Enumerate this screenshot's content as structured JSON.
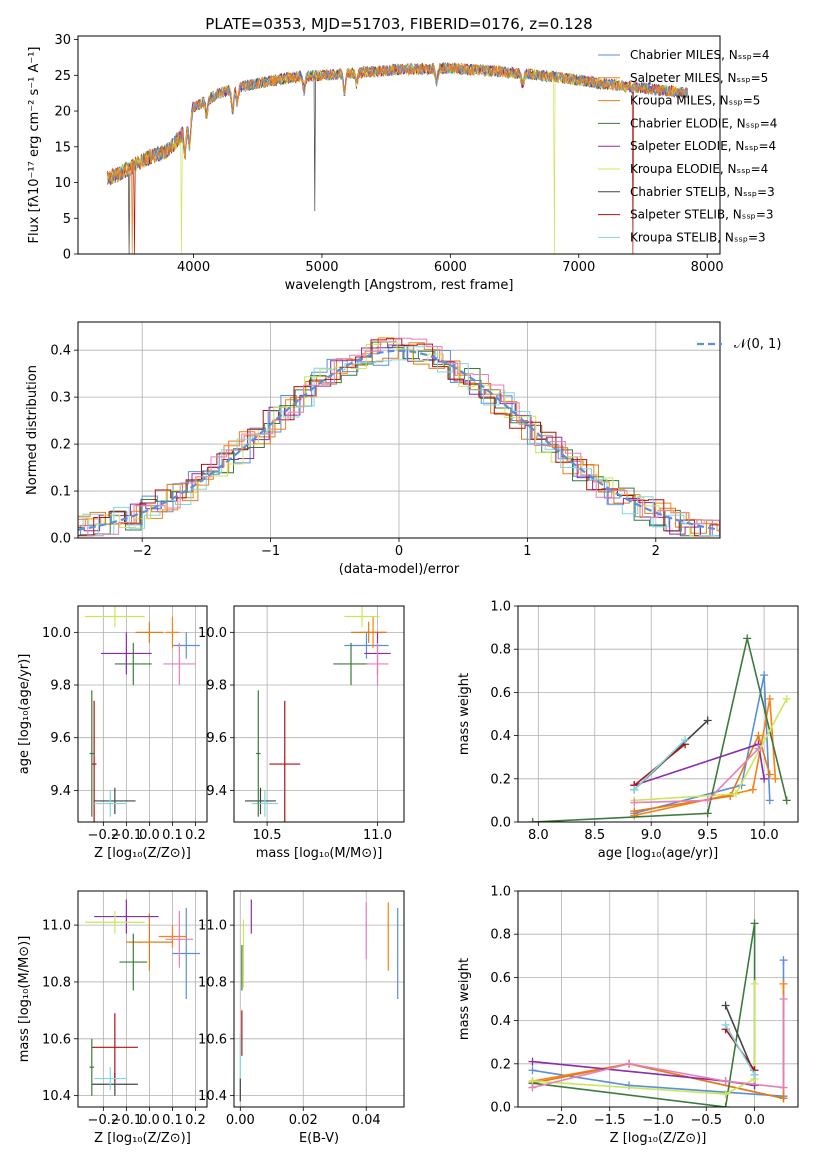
{
  "colors": {
    "chabrier_miles": "#5b8fd9",
    "salpeter_miles": "#ff7f0e",
    "kroupa_miles": "#e07b1a",
    "chabrier_elodie": "#3d7a3d",
    "salpeter_elodie": "#8b2bb0",
    "kroupa_elodie": "#c8e85a",
    "chabrier_stelib": "#444444",
    "salpeter_stelib": "#b01010",
    "kroupa_stelib": "#7fd8e0",
    "pink": "#e87fb8",
    "gaussian": "#5b8fd9",
    "grid": "#b0b0b0"
  },
  "chart_data": [
    {
      "id": "spectrum",
      "type": "line",
      "title": "PLATE=0353, MJD=51703, FIBERID=0176, z=0.128",
      "xlabel": "wavelength [Angstrom, rest frame]",
      "ylabel": "Flux [fλ10⁻¹⁷ erg cm⁻² s⁻¹ A⁻¹]",
      "xlim": [
        3100,
        8100
      ],
      "ylim": [
        0,
        30.5
      ],
      "xticks": [
        4000,
        5000,
        6000,
        7000,
        8000
      ],
      "yticks": [
        0,
        5,
        10,
        15,
        20,
        25,
        30
      ],
      "grid": false,
      "legend_position": "right",
      "legend": [
        "Chabrier MILES, Nₛₛₚ=4",
        "Salpeter MILES, Nₛₛₚ=5",
        "Kroupa MILES, Nₛₛₚ=5",
        "Chabrier ELODIE, Nₛₛₚ=4",
        "Salpeter ELODIE, Nₛₛₚ=4",
        "Kroupa ELODIE, Nₛₛₚ=4",
        "Chabrier STELIB, Nₛₛₚ=3",
        "Salpeter STELIB, Nₛₛₚ=3",
        "Kroupa STELIB, Nₛₛₚ=3"
      ],
      "continuum": [
        [
          3330,
          10.5
        ],
        [
          3450,
          11.5
        ],
        [
          3550,
          12.5
        ],
        [
          3650,
          13.5
        ],
        [
          3800,
          14.5
        ],
        [
          3900,
          16.5
        ],
        [
          4000,
          20.5
        ],
        [
          4100,
          21.5
        ],
        [
          4200,
          22.5
        ],
        [
          4400,
          23.5
        ],
        [
          4600,
          24.2
        ],
        [
          4800,
          24.8
        ],
        [
          5000,
          25.0
        ],
        [
          5300,
          25.4
        ],
        [
          5600,
          25.8
        ],
        [
          6000,
          26.0
        ],
        [
          6400,
          25.5
        ],
        [
          6800,
          24.8
        ],
        [
          7200,
          23.8
        ],
        [
          7600,
          23.0
        ],
        [
          7850,
          22.5
        ]
      ]
    },
    {
      "id": "residuals",
      "type": "line",
      "xlabel": "(data-model)/error",
      "ylabel": "Normed distribution",
      "xlim": [
        -2.5,
        2.5
      ],
      "ylim": [
        0,
        0.46
      ],
      "xticks": [
        -2,
        -1,
        0,
        1,
        2
      ],
      "yticks": [
        0.0,
        0.1,
        0.2,
        0.3,
        0.4
      ],
      "grid": true,
      "legend_position": "top-right",
      "legend": [
        "𝒩(0, 1)"
      ]
    },
    {
      "id": "age_vs_Z",
      "type": "scatter",
      "xlabel": "Z [log₁₀(Z/Z⊙)]",
      "ylabel": "age  [log₁₀(age/yr)]",
      "xlim": [
        -0.31,
        0.25
      ],
      "ylim": [
        9.28,
        10.1
      ],
      "xticks": [
        -0.2,
        -0.1,
        0.0,
        0.1,
        0.2
      ],
      "yticks": [
        9.4,
        9.6,
        9.8,
        10.0
      ],
      "grid": true,
      "points": [
        {
          "c": "chabrier_miles",
          "x": 0.16,
          "xe": 0.06,
          "y": 9.95,
          "ye": 0.05
        },
        {
          "c": "salpeter_miles",
          "x": 0.1,
          "xe": 0.03,
          "y": 10.0,
          "ye": 0.06
        },
        {
          "c": "kroupa_miles",
          "x": 0.0,
          "xe": 0.06,
          "y": 10.0,
          "ye": 0.04
        },
        {
          "c": "chabrier_elodie",
          "x": -0.07,
          "xe": 0.08,
          "y": 9.88,
          "ye": 0.08
        },
        {
          "c": "salpeter_elodie",
          "x": -0.1,
          "xe": 0.11,
          "y": 9.92,
          "ye": 0.08
        },
        {
          "c": "kroupa_elodie",
          "x": -0.15,
          "xe": 0.13,
          "y": 10.06,
          "ye": 0.04
        },
        {
          "c": "pink",
          "x": 0.13,
          "xe": 0.07,
          "y": 9.88,
          "ye": 0.08
        },
        {
          "c": "chabrier_stelib",
          "x": -0.15,
          "xe": 0.09,
          "y": 9.36,
          "ye": 0.05
        },
        {
          "c": "salpeter_stelib",
          "x": -0.24,
          "xe": 0.01,
          "y": 9.5,
          "ye": 0.24
        },
        {
          "c": "kroupa_stelib",
          "x": -0.17,
          "xe": 0.07,
          "y": 9.35,
          "ye": 0.05
        },
        {
          "c": "chabrier_elodie",
          "x": -0.25,
          "xe": 0.01,
          "y": 9.54,
          "ye": 0.24
        }
      ]
    },
    {
      "id": "age_vs_mass",
      "type": "scatter",
      "xlabel": "mass [log₁₀(M/M⊙)]",
      "ylabel": "",
      "xlim": [
        10.35,
        11.12
      ],
      "ylim": [
        9.28,
        10.1
      ],
      "xticks": [
        10.5,
        11.0
      ],
      "yticks": [
        9.4,
        9.6,
        9.8,
        10.0
      ],
      "grid": true,
      "points": [
        {
          "c": "chabrier_miles",
          "x": 10.95,
          "xe": 0.1,
          "y": 9.95,
          "ye": 0.05
        },
        {
          "c": "salpeter_miles",
          "x": 10.98,
          "xe": 0.06,
          "y": 10.0,
          "ye": 0.06
        },
        {
          "c": "kroupa_miles",
          "x": 10.96,
          "xe": 0.08,
          "y": 10.0,
          "ye": 0.04
        },
        {
          "c": "chabrier_elodie",
          "x": 10.88,
          "xe": 0.08,
          "y": 9.88,
          "ye": 0.08
        },
        {
          "c": "salpeter_elodie",
          "x": 11.0,
          "xe": 0.06,
          "y": 9.92,
          "ye": 0.08
        },
        {
          "c": "kroupa_elodie",
          "x": 10.93,
          "xe": 0.08,
          "y": 10.06,
          "ye": 0.04
        },
        {
          "c": "pink",
          "x": 11.0,
          "xe": 0.05,
          "y": 9.88,
          "ye": 0.08
        },
        {
          "c": "chabrier_stelib",
          "x": 10.47,
          "xe": 0.07,
          "y": 9.36,
          "ye": 0.05
        },
        {
          "c": "salpeter_stelib",
          "x": 10.58,
          "xe": 0.07,
          "y": 9.5,
          "ye": 0.24
        },
        {
          "c": "kroupa_stelib",
          "x": 10.49,
          "xe": 0.06,
          "y": 9.35,
          "ye": 0.05
        },
        {
          "c": "chabrier_elodie",
          "x": 10.46,
          "xe": 0.01,
          "y": 9.54,
          "ye": 0.24
        }
      ]
    },
    {
      "id": "mw_vs_age",
      "type": "line",
      "xlabel": "age  [log₁₀(age/yr)]",
      "ylabel": "mass weight",
      "xlim": [
        7.82,
        10.3
      ],
      "ylim": [
        0,
        1.0
      ],
      "xticks": [
        8.0,
        8.5,
        9.0,
        9.5,
        10.0
      ],
      "yticks": [
        0.0,
        0.2,
        0.4,
        0.6,
        0.8,
        1.0
      ],
      "grid": true,
      "series": [
        {
          "c": "chabrier_miles",
          "x": [
            8.85,
            9.8,
            10.0,
            10.05
          ],
          "y": [
            0.04,
            0.17,
            0.68,
            0.1
          ]
        },
        {
          "c": "salpeter_miles",
          "x": [
            8.85,
            9.9,
            10.05,
            10.1
          ],
          "y": [
            0.03,
            0.15,
            0.57,
            0.2
          ]
        },
        {
          "c": "kroupa_miles",
          "x": [
            8.85,
            9.7,
            9.95,
            10.05
          ],
          "y": [
            0.05,
            0.12,
            0.4,
            0.22
          ]
        },
        {
          "c": "chabrier_elodie",
          "x": [
            7.95,
            9.5,
            9.85,
            10.2
          ],
          "y": [
            0.0,
            0.04,
            0.85,
            0.1
          ]
        },
        {
          "c": "salpeter_elodie",
          "x": [
            8.85,
            9.95,
            10.0
          ],
          "y": [
            0.17,
            0.36,
            0.2
          ]
        },
        {
          "c": "kroupa_elodie",
          "x": [
            8.85,
            9.75,
            10.2
          ],
          "y": [
            0.1,
            0.13,
            0.57
          ]
        },
        {
          "c": "pink",
          "x": [
            8.85,
            9.5,
            9.95
          ],
          "y": [
            0.09,
            0.1,
            0.34
          ]
        },
        {
          "c": "chabrier_stelib",
          "x": [
            8.85,
            9.5
          ],
          "y": [
            0.15,
            0.47
          ]
        },
        {
          "c": "salpeter_stelib",
          "x": [
            8.85,
            9.3
          ],
          "y": [
            0.17,
            0.36
          ]
        },
        {
          "c": "kroupa_stelib",
          "x": [
            8.85,
            9.3
          ],
          "y": [
            0.15,
            0.38
          ]
        }
      ]
    },
    {
      "id": "mass_vs_Z",
      "type": "scatter",
      "xlabel": "Z [log₁₀(Z/Z⊙)]",
      "ylabel": "mass [log₁₀(M/M⊙)]",
      "xlim": [
        -0.31,
        0.25
      ],
      "ylim": [
        10.36,
        11.12
      ],
      "xticks": [
        -0.2,
        -0.1,
        0.0,
        0.1,
        0.2
      ],
      "yticks": [
        10.4,
        10.6,
        10.8,
        11.0
      ],
      "grid": true,
      "points": [
        {
          "c": "chabrier_miles",
          "x": 0.16,
          "xe": 0.06,
          "y": 10.9,
          "ye": 0.16
        },
        {
          "c": "salpeter_miles",
          "x": 0.1,
          "xe": 0.06,
          "y": 10.96,
          "ye": 0.04
        },
        {
          "c": "kroupa_miles",
          "x": 0.0,
          "xe": 0.1,
          "y": 10.94,
          "ye": 0.1
        },
        {
          "c": "chabrier_elodie",
          "x": -0.07,
          "xe": 0.06,
          "y": 10.87,
          "ye": 0.1
        },
        {
          "c": "salpeter_elodie",
          "x": -0.1,
          "xe": 0.14,
          "y": 11.03,
          "ye": 0.06
        },
        {
          "c": "kroupa_elodie",
          "x": -0.15,
          "xe": 0.13,
          "y": 11.01,
          "ye": 0.04
        },
        {
          "c": "pink",
          "x": 0.13,
          "xe": 0.06,
          "y": 10.95,
          "ye": 0.1
        },
        {
          "c": "chabrier_stelib",
          "x": -0.15,
          "xe": 0.1,
          "y": 10.44,
          "ye": 0.04
        },
        {
          "c": "salpeter_stelib",
          "x": -0.15,
          "xe": 0.1,
          "y": 10.57,
          "ye": 0.12
        },
        {
          "c": "kroupa_stelib",
          "x": -0.17,
          "xe": 0.07,
          "y": 10.46,
          "ye": 0.04
        },
        {
          "c": "chabrier_elodie",
          "x": -0.25,
          "xe": 0.01,
          "y": 10.5,
          "ye": 0.1
        }
      ]
    },
    {
      "id": "mass_vs_ebv",
      "type": "scatter",
      "xlabel": "E(B-V)",
      "ylabel": "",
      "xlim": [
        -0.002,
        0.052
      ],
      "ylim": [
        10.36,
        11.12
      ],
      "xticks": [
        0.0,
        0.02,
        0.04
      ],
      "yticks": [
        10.4,
        10.6,
        10.8,
        11.0
      ],
      "grid": true,
      "points": [
        {
          "c": "chabrier_miles",
          "x": 0.05,
          "y": 10.9,
          "ye": 0.16
        },
        {
          "c": "salpeter_miles",
          "x": 0.047,
          "y": 10.96,
          "ye": 0.12
        },
        {
          "c": "pink",
          "x": 0.04,
          "y": 10.98,
          "ye": 0.1
        },
        {
          "c": "salpeter_elodie",
          "x": 0.0035,
          "y": 11.03,
          "ye": 0.06
        },
        {
          "c": "kroupa_elodie",
          "x": 0.001,
          "y": 10.9,
          "ye": 0.12
        },
        {
          "c": "chabrier_elodie",
          "x": 0.0005,
          "y": 10.85,
          "ye": 0.08
        },
        {
          "c": "salpeter_stelib",
          "x": 0.0005,
          "y": 10.62,
          "ye": 0.08
        },
        {
          "c": "kroupa_stelib",
          "x": 0.0,
          "y": 10.5,
          "ye": 0.12
        },
        {
          "c": "chabrier_stelib",
          "x": 0.0,
          "y": 10.42,
          "ye": 0.04
        }
      ]
    },
    {
      "id": "mw_vs_Z",
      "type": "line",
      "xlabel": "Z [log₁₀(Z/Z⊙)]",
      "ylabel": "mass weight",
      "xlim": [
        -2.45,
        0.45
      ],
      "ylim": [
        0,
        1.0
      ],
      "xticks": [
        -2.0,
        -1.5,
        -1.0,
        -0.5,
        0.0
      ],
      "yticks": [
        0.0,
        0.2,
        0.4,
        0.6,
        0.8,
        1.0
      ],
      "grid": true,
      "series": [
        {
          "c": "chabrier_miles",
          "x": [
            -2.3,
            -1.3,
            0.3,
            0.3
          ],
          "y": [
            0.17,
            0.1,
            0.05,
            0.68
          ]
        },
        {
          "c": "salpeter_miles",
          "x": [
            -2.3,
            -1.3,
            0.3,
            0.3
          ],
          "y": [
            0.12,
            0.2,
            0.04,
            0.57
          ]
        },
        {
          "c": "kroupa_miles",
          "x": [
            -2.3,
            -1.3,
            0.3
          ],
          "y": [
            0.11,
            0.2,
            0.04
          ]
        },
        {
          "c": "chabrier_elodie",
          "x": [
            -2.3,
            -0.3,
            0.0,
            0.0
          ],
          "y": [
            0.11,
            0.0,
            0.85,
            0.1
          ]
        },
        {
          "c": "salpeter_elodie",
          "x": [
            -2.3,
            -0.3,
            0.0
          ],
          "y": [
            0.21,
            0.12,
            0.1
          ]
        },
        {
          "c": "kroupa_elodie",
          "x": [
            -2.3,
            -0.3,
            0.0,
            0.0
          ],
          "y": [
            0.12,
            0.06,
            0.13,
            0.57
          ]
        },
        {
          "c": "pink",
          "x": [
            -2.3,
            -1.3,
            -0.3,
            0.3,
            0.3
          ],
          "y": [
            0.09,
            0.2,
            0.12,
            0.09,
            0.5
          ]
        },
        {
          "c": "chabrier_stelib",
          "x": [
            -0.3,
            0.0
          ],
          "y": [
            0.47,
            0.15
          ]
        },
        {
          "c": "salpeter_stelib",
          "x": [
            -0.3,
            0.0
          ],
          "y": [
            0.36,
            0.17
          ]
        },
        {
          "c": "kroupa_stelib",
          "x": [
            -0.3,
            0.0
          ],
          "y": [
            0.38,
            0.15
          ]
        }
      ]
    }
  ]
}
